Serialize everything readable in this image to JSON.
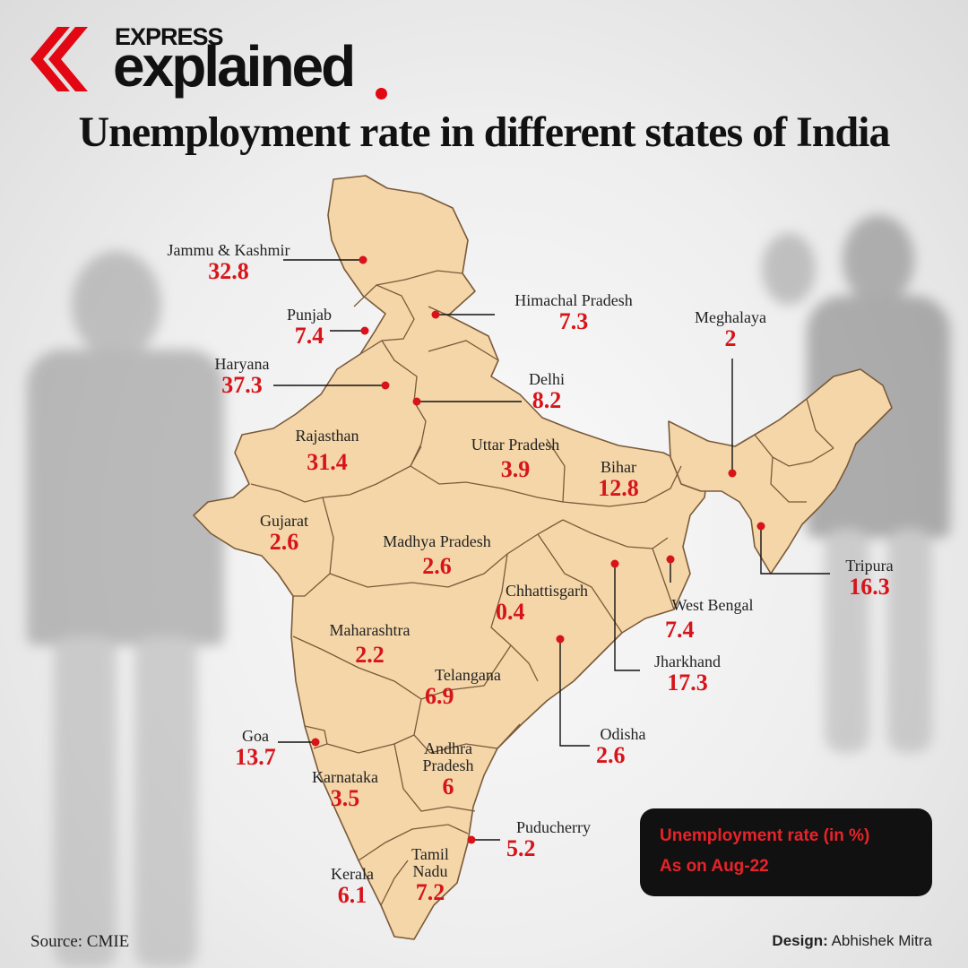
{
  "brand": {
    "line1": "EXPRESS",
    "line2": "explained"
  },
  "title": "Unemployment rate in different states of India",
  "states": [
    {
      "name": "Jammu & Kashmir",
      "value": "32.8"
    },
    {
      "name": "Himachal Pradesh",
      "value": "7.3"
    },
    {
      "name": "Punjab",
      "value": "7.4"
    },
    {
      "name": "Haryana",
      "value": "37.3"
    },
    {
      "name": "Delhi",
      "value": "8.2"
    },
    {
      "name": "Meghalaya",
      "value": "2"
    },
    {
      "name": "Rajasthan",
      "value": "31.4"
    },
    {
      "name": "Uttar Pradesh",
      "value": "3.9"
    },
    {
      "name": "Bihar",
      "value": "12.8"
    },
    {
      "name": "Gujarat",
      "value": "2.6"
    },
    {
      "name": "Madhya Pradesh",
      "value": "2.6"
    },
    {
      "name": "Tripura",
      "value": "16.3"
    },
    {
      "name": "Chhattisgarh",
      "value": "0.4"
    },
    {
      "name": "West Bengal",
      "value": "7.4"
    },
    {
      "name": "Maharashtra",
      "value": "2.2"
    },
    {
      "name": "Jharkhand",
      "value": "17.3"
    },
    {
      "name": "Telangana",
      "value": "6.9"
    },
    {
      "name": "Odisha",
      "value": "2.6"
    },
    {
      "name": "Goa",
      "value": "13.7"
    },
    {
      "name": "Andhra",
      "name2": "Pradesh",
      "value": "6"
    },
    {
      "name": "Karnataka",
      "value": "3.5"
    },
    {
      "name": "Puducherry",
      "value": "5.2"
    },
    {
      "name": "Tamil",
      "name2": "Nadu",
      "value": "7.2"
    },
    {
      "name": "Kerala",
      "value": "6.1"
    }
  ],
  "legend": {
    "line1": "Unemployment rate (in %)",
    "line2": "As on Aug-22"
  },
  "footer": {
    "source": "Source: CMIE",
    "design_label": "Design:",
    "designer": "Abhishek Mitra"
  },
  "colors": {
    "land": "#f4d6a8",
    "border": "#7a5a3a",
    "marker": "#d7141a",
    "value_text": "#d7141a"
  }
}
